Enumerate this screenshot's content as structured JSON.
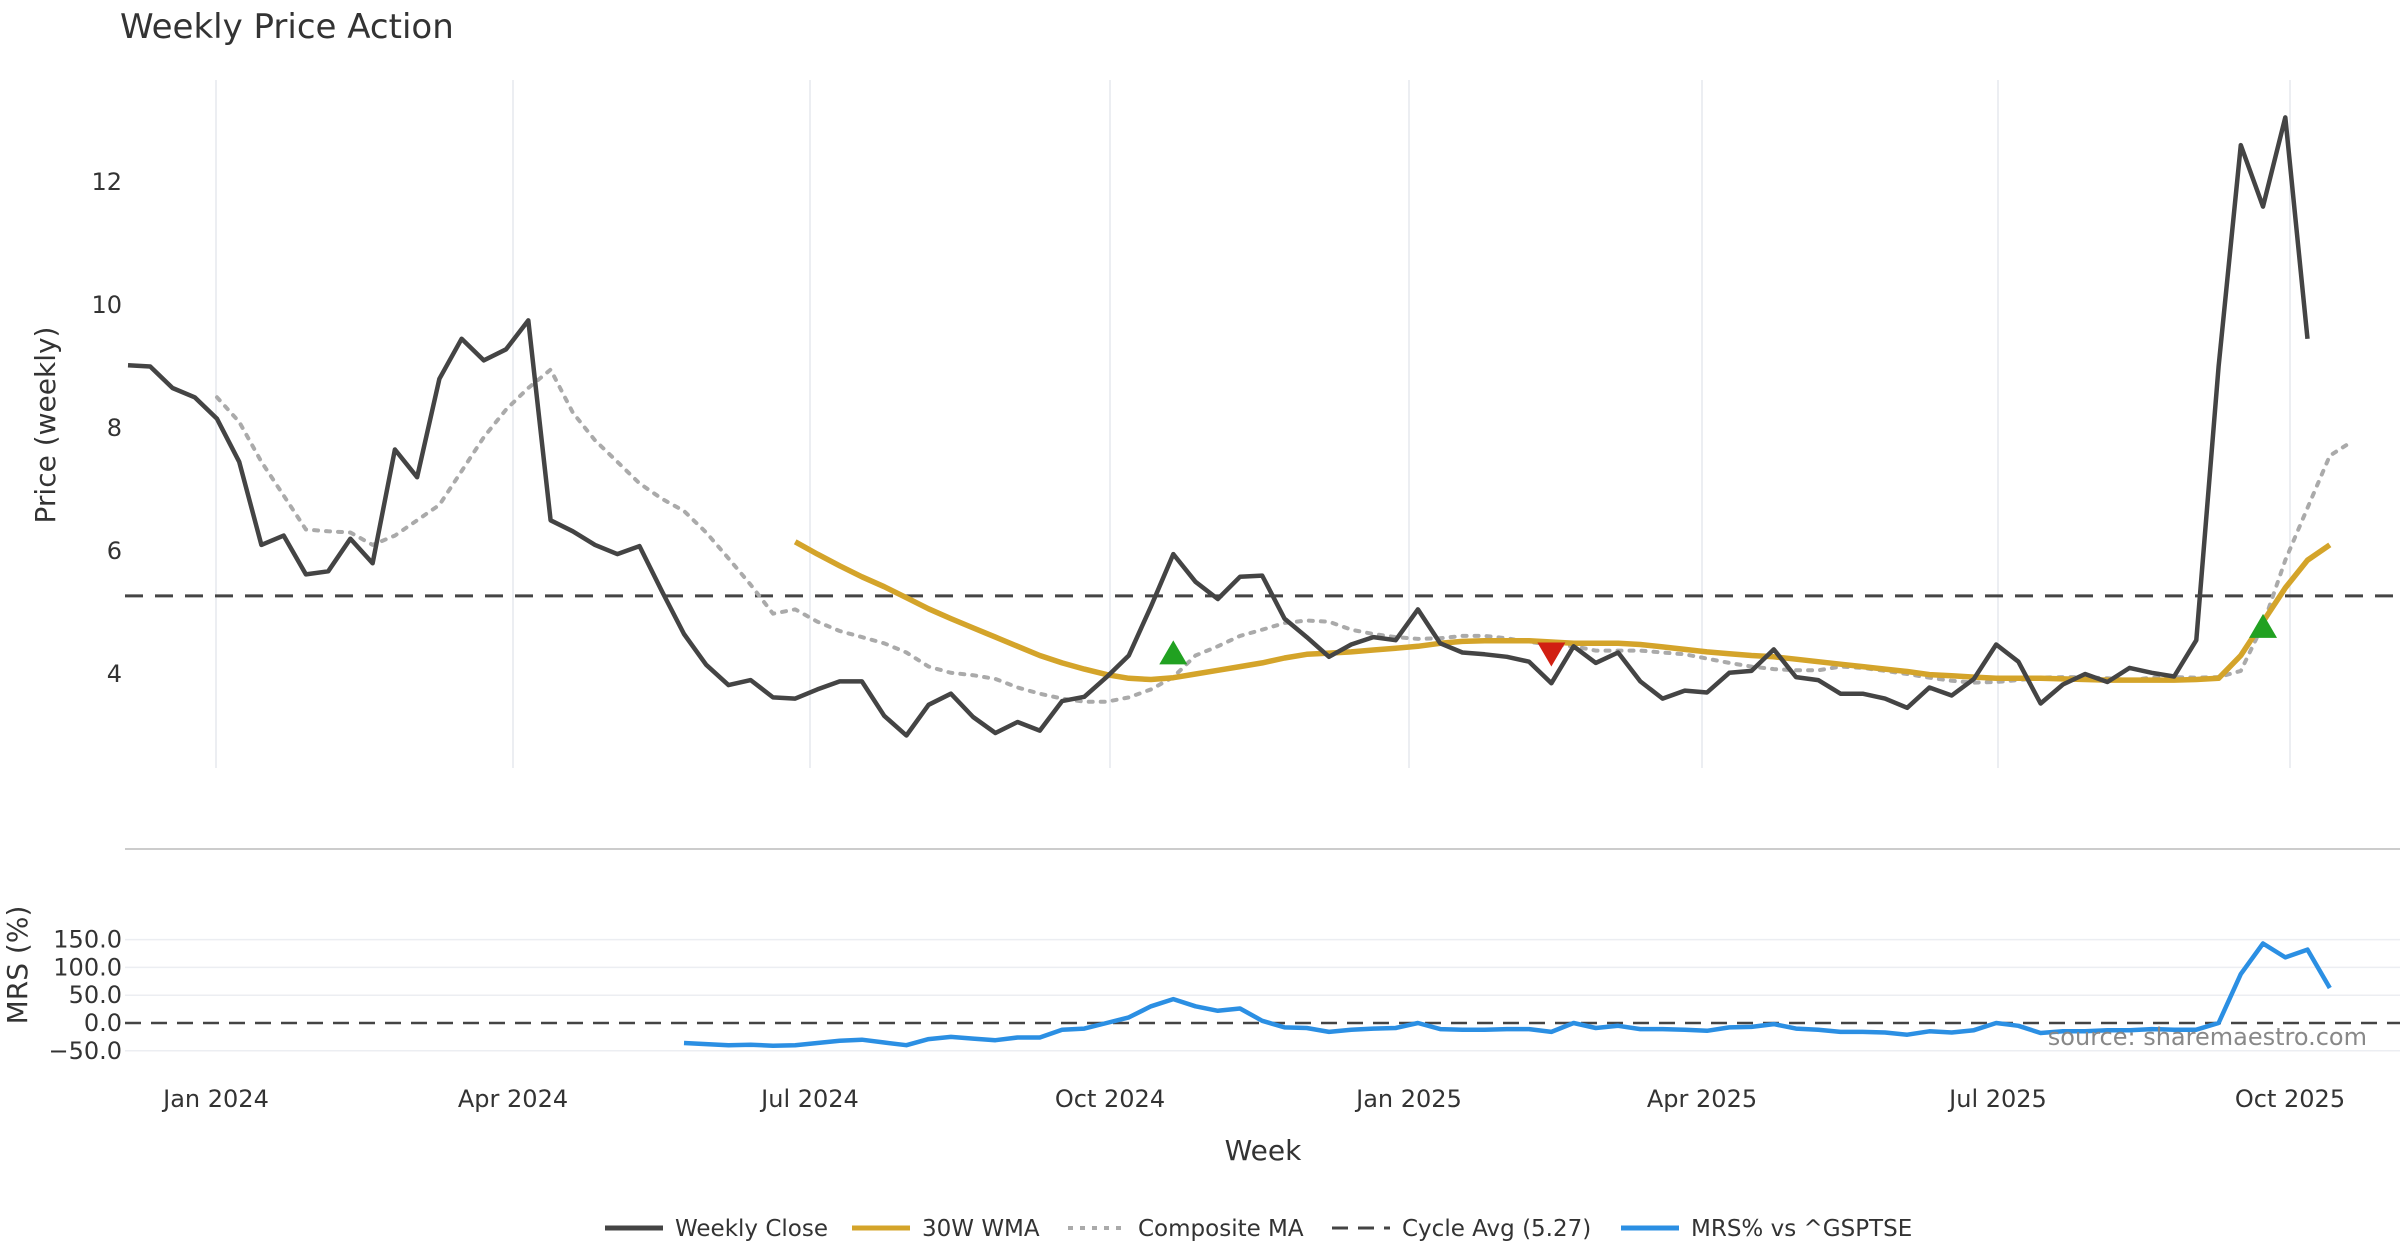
{
  "chart_data": {
    "type": "line",
    "title": "Weekly Price Action",
    "xlabel": "Week",
    "x_ticks": [
      "Jan 2024",
      "Apr 2024",
      "Jul 2024",
      "Oct 2024",
      "Jan 2025",
      "Apr 2025",
      "Jul 2025",
      "Oct 2025"
    ],
    "x_range_weeks": [
      0,
      101
    ],
    "price_panel": {
      "ylabel": "Price (weekly)",
      "ylim": [
        2.3,
        13.8
      ],
      "y_ticks": [
        4,
        6,
        8,
        10,
        12
      ],
      "series": [
        {
          "name": "Weekly Close",
          "color": "#444444",
          "start_week": 0,
          "values": [
            9.02,
            9.0,
            8.65,
            8.5,
            8.15,
            7.45,
            6.1,
            6.25,
            5.62,
            5.67,
            6.2,
            5.8,
            7.65,
            7.2,
            8.8,
            9.45,
            9.1,
            9.28,
            9.75,
            6.5,
            6.32,
            6.1,
            5.95,
            6.08,
            5.35,
            4.65,
            4.15,
            3.82,
            3.9,
            3.62,
            3.6,
            3.75,
            3.88,
            3.88,
            3.32,
            3.0,
            3.5,
            3.68,
            3.3,
            3.04,
            3.22,
            3.08,
            3.56,
            3.63,
            3.95,
            4.3,
            5.1,
            5.95,
            5.5,
            5.22,
            5.58,
            5.6,
            4.9,
            4.6,
            4.28,
            4.48,
            4.6,
            4.55,
            5.05,
            4.5,
            4.35,
            4.32,
            4.28,
            4.2,
            3.85,
            4.45,
            4.18,
            4.35,
            3.88,
            3.6,
            3.73,
            3.7,
            4.02,
            4.05,
            4.4,
            3.95,
            3.9,
            3.68,
            3.68,
            3.6,
            3.45,
            3.78,
            3.65,
            3.92,
            4.48,
            4.2,
            3.52,
            3.83,
            4.0,
            3.87,
            4.1,
            4.02,
            3.96,
            4.55,
            9.0,
            12.6,
            11.6,
            13.05,
            9.45
          ]
        },
        {
          "name": "30W WMA",
          "color": "#D4A42A",
          "start_week": 30,
          "values": [
            6.15,
            5.95,
            5.76,
            5.58,
            5.42,
            5.24,
            5.06,
            4.9,
            4.75,
            4.6,
            4.45,
            4.3,
            4.18,
            4.08,
            3.99,
            3.93,
            3.91,
            3.94,
            4.0,
            4.06,
            4.12,
            4.18,
            4.26,
            4.32,
            4.34,
            4.36,
            4.39,
            4.42,
            4.45,
            4.5,
            4.53,
            4.54,
            4.54,
            4.54,
            4.52,
            4.5,
            4.5,
            4.5,
            4.48,
            4.44,
            4.4,
            4.36,
            4.33,
            4.3,
            4.28,
            4.24,
            4.2,
            4.16,
            4.12,
            4.08,
            4.04,
            3.99,
            3.97,
            3.95,
            3.93,
            3.93,
            3.93,
            3.92,
            3.91,
            3.9,
            3.9,
            3.9,
            3.9,
            3.91,
            3.93,
            4.3,
            4.85,
            5.4,
            5.85,
            6.1
          ]
        },
        {
          "name": "Composite MA",
          "color": "#AAAAAA",
          "start_week": 4,
          "values": [
            8.5,
            8.1,
            7.45,
            6.9,
            6.35,
            6.32,
            6.3,
            6.1,
            6.25,
            6.5,
            6.75,
            7.3,
            7.85,
            8.3,
            8.65,
            8.95,
            8.25,
            7.8,
            7.45,
            7.1,
            6.85,
            6.65,
            6.3,
            5.88,
            5.45,
            4.98,
            5.05,
            4.85,
            4.7,
            4.6,
            4.5,
            4.35,
            4.12,
            4.02,
            3.98,
            3.92,
            3.78,
            3.68,
            3.6,
            3.55,
            3.55,
            3.62,
            3.75,
            3.95,
            4.3,
            4.45,
            4.62,
            4.72,
            4.83,
            4.87,
            4.85,
            4.72,
            4.65,
            4.6,
            4.57,
            4.58,
            4.62,
            4.62,
            4.58,
            4.52,
            4.48,
            4.45,
            4.38,
            4.38,
            4.38,
            4.35,
            4.32,
            4.25,
            4.18,
            4.12,
            4.08,
            4.06,
            4.06,
            4.12,
            4.1,
            4.05,
            4.0,
            3.94,
            3.89,
            3.86,
            3.87,
            3.9,
            3.94,
            3.95,
            3.95,
            3.93,
            3.9,
            3.94,
            3.95,
            3.94,
            3.95,
            4.05,
            4.8,
            5.85,
            6.7,
            7.55,
            7.78
          ]
        }
      ],
      "reference_line": {
        "name": "Cycle Avg (5.27)",
        "value": 5.27,
        "color": "#444444"
      },
      "markers": [
        {
          "type": "buy",
          "week": 47,
          "value": 4.32,
          "color": "#21A121"
        },
        {
          "type": "sell",
          "week": 64,
          "value": 4.35,
          "color": "#D11F12"
        },
        {
          "type": "buy",
          "week": 96,
          "value": 4.75,
          "color": "#21A121"
        }
      ]
    },
    "mrs_panel": {
      "ylabel": "MRS (%)",
      "ylim": [
        -50,
        150
      ],
      "y_ticks": [
        -50,
        0,
        50,
        100,
        150
      ],
      "y_tick_labels": [
        "−50.0",
        "0.0",
        "50.0",
        "100.0",
        "150.0"
      ],
      "zero_line": 0,
      "series": [
        {
          "name": "MRS% vs ^GSPTSE",
          "color": "#2B8FE3",
          "start_week": 25,
          "values": [
            -36,
            -38,
            -40,
            -39,
            -41,
            -40,
            -36,
            -32,
            -30,
            -35,
            -40,
            -29,
            -25,
            -28,
            -31,
            -26,
            -26,
            -12,
            -10,
            0,
            10,
            30,
            43,
            30,
            22,
            26,
            4,
            -8,
            -9,
            -16,
            -12,
            -10,
            -9,
            0,
            -11,
            -12,
            -12,
            -11,
            -11,
            -16,
            0,
            -9,
            -5,
            -11,
            -11,
            -12,
            -14,
            -8,
            -7,
            -2,
            -10,
            -12,
            -16,
            -16,
            -17,
            -21,
            -15,
            -17,
            -13,
            0,
            -5,
            -18,
            -15,
            -15,
            -13,
            -13,
            -11,
            -12,
            -12,
            0,
            88,
            143,
            118,
            132,
            63
          ]
        }
      ]
    },
    "legend": [
      "Weekly Close",
      "30W WMA",
      "Composite MA",
      "Cycle Avg (5.27)",
      "MRS% vs ^GSPTSE"
    ],
    "legend_position": "bottom-center",
    "source": "source: sharemaestro.com"
  }
}
